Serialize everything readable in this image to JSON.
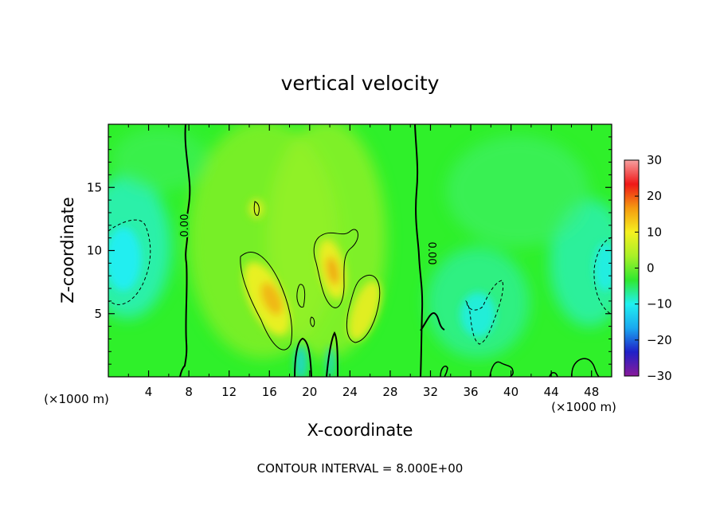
{
  "chart_data": {
    "type": "heatmap",
    "title": "vertical velocity",
    "xlabel": "X-coordinate",
    "ylabel": "Z-coordinate",
    "x_unit_left": "(×1000 m)",
    "x_unit_right": "(×1000 m)",
    "xlim": [
      0,
      50
    ],
    "ylim": [
      0,
      20
    ],
    "xticks": [
      4,
      8,
      12,
      16,
      20,
      24,
      28,
      32,
      36,
      40,
      44,
      48
    ],
    "yticks": [
      5,
      10,
      15
    ],
    "colorbar": {
      "range": [
        -30,
        30
      ],
      "ticks": [
        30,
        20,
        10,
        0,
        -10,
        -20,
        -30
      ],
      "tick_labels": [
        "30",
        "20",
        "10",
        "0",
        "−10",
        "−20",
        "−30"
      ],
      "colors": [
        "#8a1a9a",
        "#2020c8",
        "#1aa8f0",
        "#20f0f0",
        "#30e830",
        "#a8f028",
        "#f5f020",
        "#f59a10",
        "#f01818",
        "#f5a0a0"
      ]
    },
    "contour_interval_text": "CONTOUR INTERVAL = 8.000E+00",
    "contour_labels": [
      "0.00",
      "0.00"
    ],
    "features": [
      {
        "kind": "updraft",
        "x": 16.5,
        "z": 6.5,
        "w": 14
      },
      {
        "kind": "updraft",
        "x": 22.3,
        "z": 8.3,
        "w": 15
      },
      {
        "kind": "updraft",
        "x": 24.8,
        "z": 5.0,
        "w": 12
      },
      {
        "kind": "updraft",
        "x": 14.8,
        "z": 13.5,
        "w": 11
      },
      {
        "kind": "downdraft",
        "x": 1.5,
        "z": 9.0,
        "w": -11
      },
      {
        "kind": "downdraft",
        "x": 49.0,
        "z": 8.0,
        "w": -10
      },
      {
        "kind": "downdraft",
        "x": 37.0,
        "z": 5.0,
        "w": -9
      },
      {
        "kind": "downdraft",
        "x": 19.3,
        "z": 1.0,
        "w": -4
      },
      {
        "kind": "downdraft",
        "x": 22.2,
        "z": 1.2,
        "w": -4
      }
    ]
  }
}
